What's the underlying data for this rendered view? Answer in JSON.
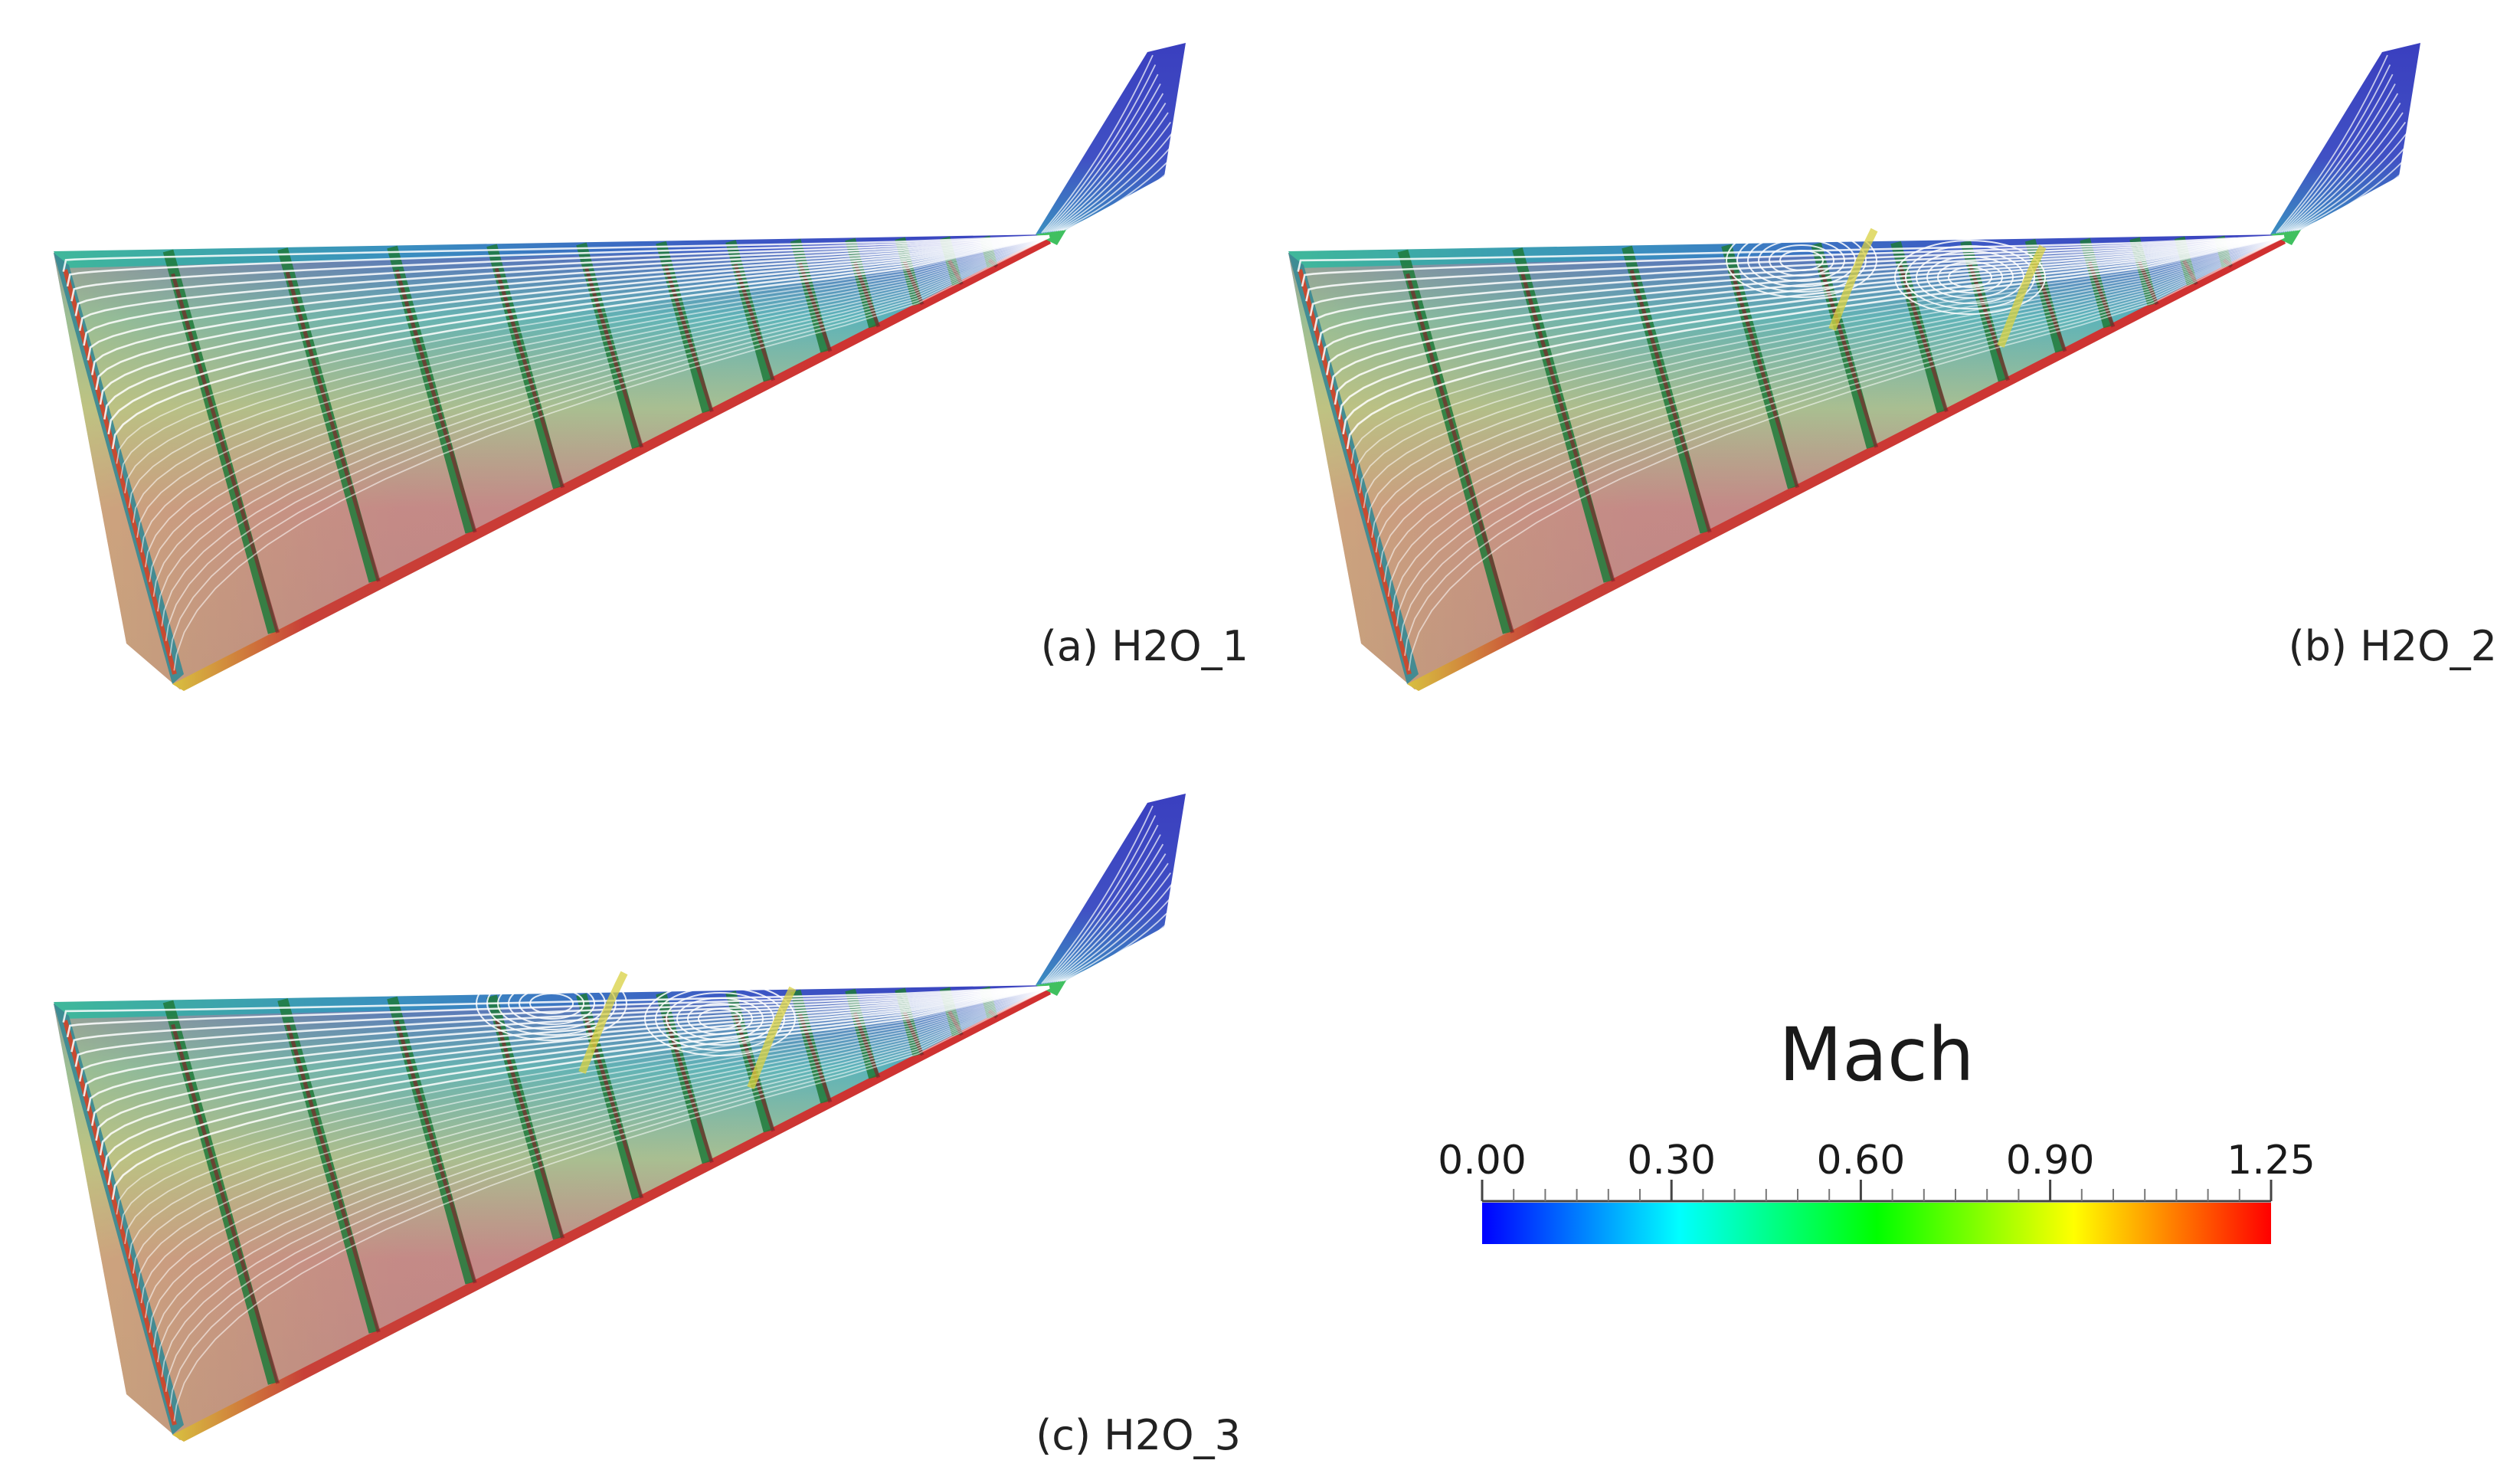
{
  "panels": [
    {
      "id": "a",
      "label": "(a) H2O_1",
      "vortex_count": 0
    },
    {
      "id": "b",
      "label": "(b) H2O_2",
      "vortex_count": 2
    },
    {
      "id": "c",
      "label": "(c) H2O_3",
      "vortex_count": 2
    }
  ],
  "colorbar": {
    "title": "Mach",
    "ticks": [
      "0.00",
      "0.30",
      "0.60",
      "0.90",
      "1.25"
    ],
    "tick_values": [
      0.0,
      0.3,
      0.6,
      0.9,
      1.25
    ],
    "range": [
      0.0,
      1.25
    ],
    "colormap": [
      "#0000ff",
      "#00ffff",
      "#00ff00",
      "#ffff00",
      "#ff0000"
    ]
  },
  "colors": {
    "mach_low": "#3a4fc8",
    "mach_mid": "#36c49a",
    "mach_high": "#c8323a",
    "rib": "#1f7a3a",
    "streamline": "#ffffff"
  }
}
